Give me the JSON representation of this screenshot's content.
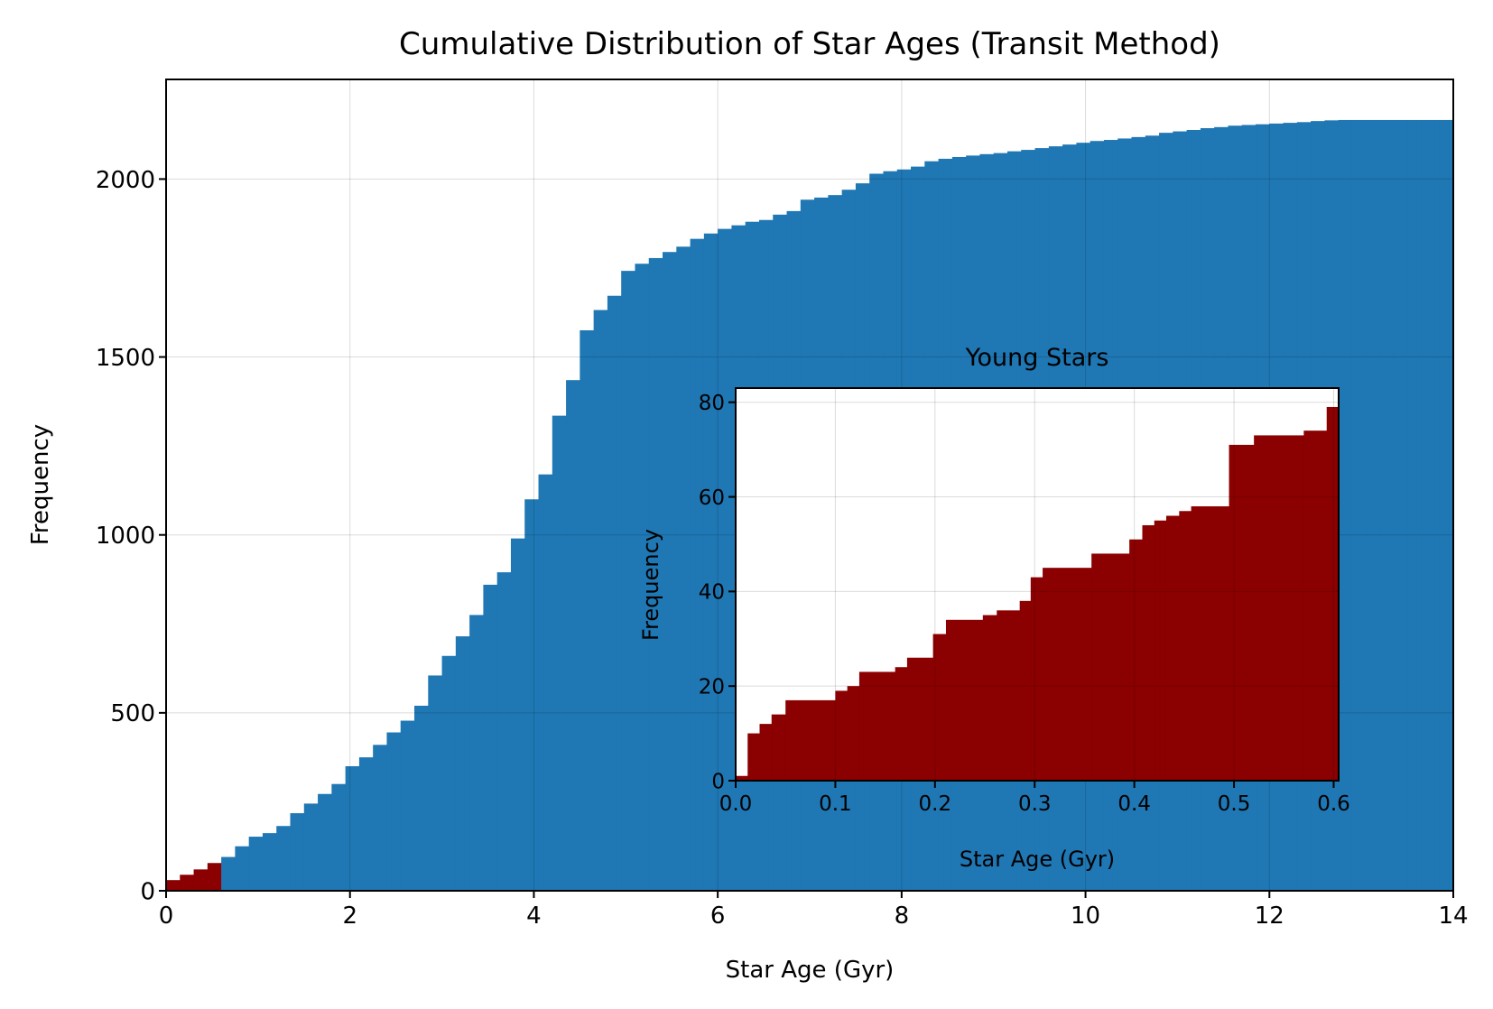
{
  "chart_data": [
    {
      "id": "main",
      "type": "bar",
      "subtype": "cumulative-histogram",
      "title": "Cumulative Distribution of Star Ages (Transit Method)",
      "xlabel": "Star Age (Gyr)",
      "ylabel": "Frequency",
      "xlim": [
        0,
        14
      ],
      "ylim": [
        0,
        2280
      ],
      "xticks": [
        0,
        2,
        4,
        6,
        8,
        10,
        12,
        14
      ],
      "xtick_labels": [
        "0",
        "2",
        "4",
        "6",
        "8",
        "10",
        "12",
        "14"
      ],
      "yticks": [
        0,
        500,
        1000,
        1500,
        2000
      ],
      "ytick_labels": [
        "0",
        "500",
        "1000",
        "1500",
        "2000"
      ],
      "grid": true,
      "bin_width": 0.15,
      "colors": {
        "main": "#1f77b4",
        "highlight": "#8b0000"
      },
      "highlight_range": [
        0,
        0.6
      ],
      "values": [
        30,
        45,
        60,
        78,
        95,
        125,
        152,
        162,
        182,
        218,
        245,
        272,
        300,
        350,
        375,
        410,
        445,
        478,
        520,
        605,
        660,
        715,
        775,
        860,
        895,
        990,
        1100,
        1170,
        1335,
        1435,
        1575,
        1632,
        1672,
        1742,
        1762,
        1778,
        1795,
        1810,
        1832,
        1847,
        1860,
        1870,
        1880,
        1885,
        1900,
        1910,
        1942,
        1948,
        1955,
        1970,
        1988,
        2015,
        2022,
        2027,
        2035,
        2050,
        2057,
        2062,
        2066,
        2070,
        2073,
        2078,
        2082,
        2087,
        2092,
        2097,
        2102,
        2107,
        2110,
        2114,
        2118,
        2122,
        2130,
        2134,
        2138,
        2143,
        2146,
        2150,
        2152,
        2154,
        2156,
        2158,
        2160,
        2163,
        2165,
        2166,
        2166,
        2166,
        2166,
        2166,
        2166,
        2166,
        2166,
        2166
      ]
    },
    {
      "id": "inset",
      "type": "bar",
      "subtype": "cumulative-histogram",
      "title": "Young Stars",
      "xlabel": "Star Age (Gyr)",
      "ylabel": "Frequency",
      "xlim": [
        0,
        0.605
      ],
      "ylim": [
        0,
        83
      ],
      "xticks": [
        0.0,
        0.1,
        0.2,
        0.3,
        0.4,
        0.5,
        0.6
      ],
      "xtick_labels": [
        "0.0",
        "0.1",
        "0.2",
        "0.3",
        "0.4",
        "0.5",
        "0.6"
      ],
      "yticks": [
        0,
        20,
        40,
        60,
        80
      ],
      "ytick_labels": [
        "0",
        "20",
        "40",
        "60",
        "80"
      ],
      "grid": true,
      "legend_position": "inside main chart, lower right",
      "colors": {
        "bar": "#8b0000"
      },
      "bins": [
        [
          0.0,
          0.012,
          1
        ],
        [
          0.012,
          0.024,
          10
        ],
        [
          0.024,
          0.036,
          12
        ],
        [
          0.036,
          0.05,
          14
        ],
        [
          0.05,
          0.1,
          17
        ],
        [
          0.1,
          0.112,
          19
        ],
        [
          0.112,
          0.124,
          20
        ],
        [
          0.124,
          0.16,
          23
        ],
        [
          0.16,
          0.172,
          24
        ],
        [
          0.172,
          0.198,
          26
        ],
        [
          0.198,
          0.211,
          31
        ],
        [
          0.211,
          0.248,
          34
        ],
        [
          0.248,
          0.262,
          35
        ],
        [
          0.262,
          0.285,
          36
        ],
        [
          0.285,
          0.296,
          38
        ],
        [
          0.296,
          0.308,
          43
        ],
        [
          0.308,
          0.357,
          45
        ],
        [
          0.357,
          0.395,
          48
        ],
        [
          0.395,
          0.408,
          51
        ],
        [
          0.408,
          0.42,
          54
        ],
        [
          0.42,
          0.432,
          55
        ],
        [
          0.432,
          0.445,
          56
        ],
        [
          0.445,
          0.457,
          57
        ],
        [
          0.457,
          0.495,
          58
        ],
        [
          0.495,
          0.52,
          71
        ],
        [
          0.52,
          0.57,
          73
        ],
        [
          0.57,
          0.593,
          74
        ],
        [
          0.593,
          0.605,
          79
        ]
      ]
    }
  ]
}
